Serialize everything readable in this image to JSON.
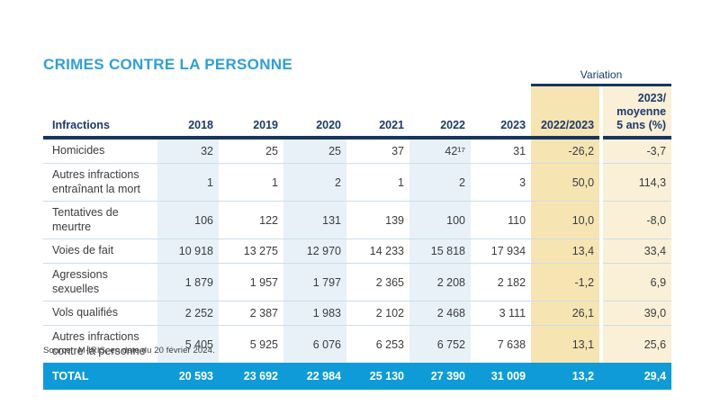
{
  "title": "CRIMES CONTRE LA PERSONNE",
  "colors": {
    "title_blue": "#2f9fd9",
    "navy": "#17365f",
    "total_bar_blue": "#0f9bd7",
    "year_band_blue": "#e8f1f8",
    "variation_band_yellow": "#f6e5b3",
    "variation_band_yellow_light": "#faf0d7",
    "separator": "#cbdee9"
  },
  "table": {
    "variation_label": "Variation",
    "columns": [
      "Infractions",
      "2018",
      "2019",
      "2020",
      "2021",
      "2022",
      "2023",
      "2022/2023",
      "2023/\nmoyenne\n5 ans (%)"
    ],
    "rows": [
      {
        "label": "Homicides",
        "values": [
          "32",
          "25",
          "25",
          "37",
          "42¹⁷",
          "31",
          "-26,2",
          "-3,7"
        ]
      },
      {
        "label": "Autres infractions\nentraînant la mort",
        "values": [
          "1",
          "1",
          "2",
          "1",
          "2",
          "3",
          "50,0",
          "114,3"
        ]
      },
      {
        "label": "Tentatives de\nmeurtre",
        "values": [
          "106",
          "122",
          "131",
          "139",
          "100",
          "110",
          "10,0",
          "-8,0"
        ]
      },
      {
        "label": "Voies de fait",
        "values": [
          "10 918",
          "13 275",
          "12 970",
          "14 233",
          "15 818",
          "17 934",
          "13,4",
          "33,4"
        ]
      },
      {
        "label": "Agressions sexuelles",
        "values": [
          "1 879",
          "1 957",
          "1 797",
          "2 365",
          "2 208",
          "2 182",
          "-1,2",
          "6,9"
        ]
      },
      {
        "label": "Vols qualifiés",
        "values": [
          "2 252",
          "2 387",
          "1 983",
          "2 102",
          "2 468",
          "3 111",
          "26,1",
          "39,0"
        ]
      },
      {
        "label": "Autres infractions\ncontre la personne",
        "values": [
          "5 405",
          "5 925",
          "6 076",
          "6 253",
          "6 752",
          "7 638",
          "13,1",
          "25,6"
        ]
      }
    ],
    "total": {
      "label": "TOTAL",
      "values": [
        "20 593",
        "23 692",
        "22 984",
        "25 130",
        "27 390",
        "31 009",
        "13,2",
        "29,4"
      ]
    }
  },
  "source": "Source : M-IRIS, en date du 20 février 2024."
}
